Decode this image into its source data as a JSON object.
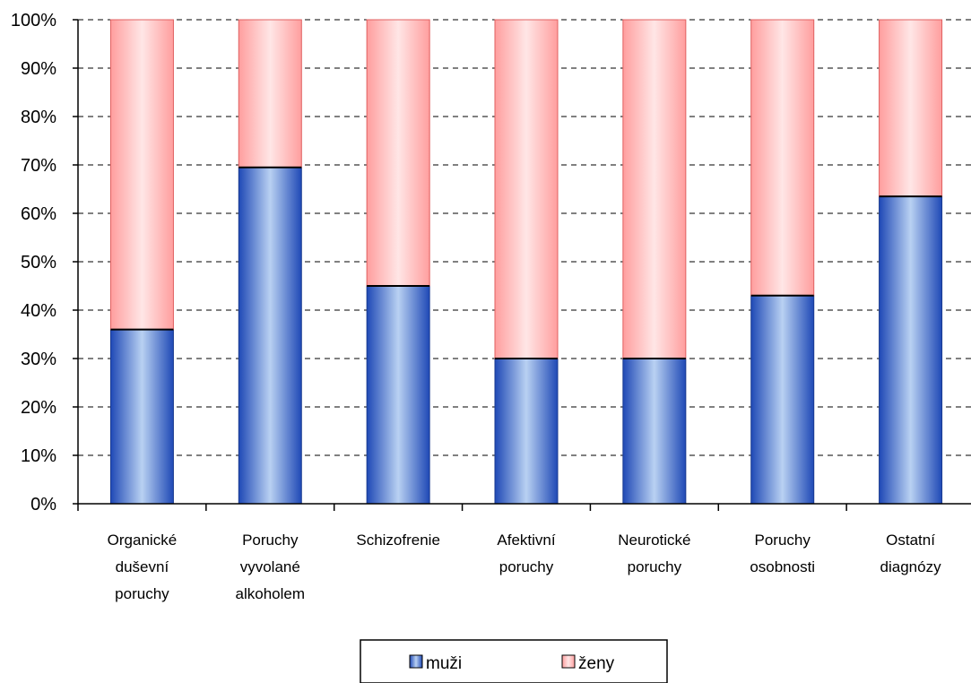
{
  "chart_data": {
    "type": "bar",
    "stacked": true,
    "categories": [
      [
        "Organické",
        "duševní",
        "poruchy"
      ],
      [
        "Poruchy",
        "vyvolané",
        "alkoholem"
      ],
      [
        "Schizofrenie"
      ],
      [
        "Afektivní",
        "poruchy"
      ],
      [
        "Neurotické",
        "poruchy"
      ],
      [
        "Poruchy",
        "osobnosti"
      ],
      [
        "Ostatní",
        "diagnózy"
      ]
    ],
    "series": [
      {
        "name": "muži",
        "values": [
          36,
          69.5,
          45,
          30,
          30,
          43,
          63.5
        ],
        "color": "#3b6fd1"
      },
      {
        "name": "ženy",
        "values": [
          64,
          30.5,
          55,
          70,
          70,
          57,
          36.5
        ],
        "color": "#ff9b9b"
      }
    ],
    "ylim": [
      0,
      100
    ],
    "yticks": [
      "0%",
      "10%",
      "20%",
      "30%",
      "40%",
      "50%",
      "60%",
      "70%",
      "80%",
      "90%",
      "100%"
    ],
    "grid": true,
    "legend_position": "bottom"
  }
}
